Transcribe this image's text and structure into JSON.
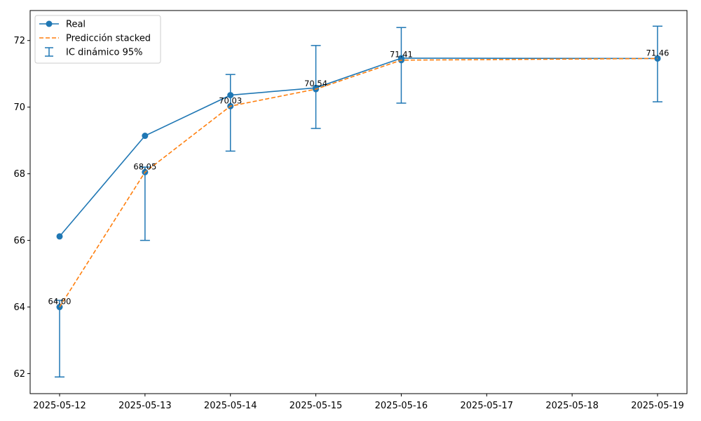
{
  "chart_data": {
    "type": "line",
    "title": "",
    "xlabel": "",
    "ylabel": "",
    "x_ticks": [
      "2025-05-12",
      "2025-05-13",
      "2025-05-14",
      "2025-05-15",
      "2025-05-16",
      "2025-05-17",
      "2025-05-18",
      "2025-05-19"
    ],
    "ylim": [
      61.4,
      72.9
    ],
    "y_ticks": [
      62,
      64,
      66,
      68,
      70,
      72
    ],
    "grid": false,
    "legend_position": "top-left",
    "series": [
      {
        "name": "Real",
        "style": "solid-with-markers",
        "color": "#1f77b4",
        "x": [
          "2025-05-12",
          "2025-05-13",
          "2025-05-14",
          "2025-05-15",
          "2025-05-16",
          "2025-05-19"
        ],
        "values": [
          66.12,
          69.14,
          70.36,
          70.58,
          71.47,
          71.46
        ]
      },
      {
        "name": "Predicción stacked",
        "style": "dashed",
        "color": "#ff7f0e",
        "x": [
          "2025-05-12",
          "2025-05-13",
          "2025-05-14",
          "2025-05-15",
          "2025-05-16",
          "2025-05-19"
        ],
        "values": [
          64.0,
          68.05,
          70.03,
          70.54,
          71.41,
          71.46
        ],
        "data_labels": [
          "64.00",
          "68.05",
          "70.03",
          "70.54",
          "71.41",
          "71.46"
        ]
      },
      {
        "name": "IC dinámico 95%",
        "style": "errorbar",
        "color": "#1f77b4",
        "x": [
          "2025-05-12",
          "2025-05-13",
          "2025-05-14",
          "2025-05-15",
          "2025-05-16",
          "2025-05-19"
        ],
        "center": [
          64.0,
          68.05,
          70.03,
          70.54,
          71.41,
          71.46
        ],
        "lower": [
          61.9,
          66.0,
          68.68,
          69.36,
          70.12,
          70.16
        ],
        "upper": [
          64.2,
          68.2,
          70.98,
          71.85,
          72.39,
          72.43
        ]
      }
    ]
  }
}
